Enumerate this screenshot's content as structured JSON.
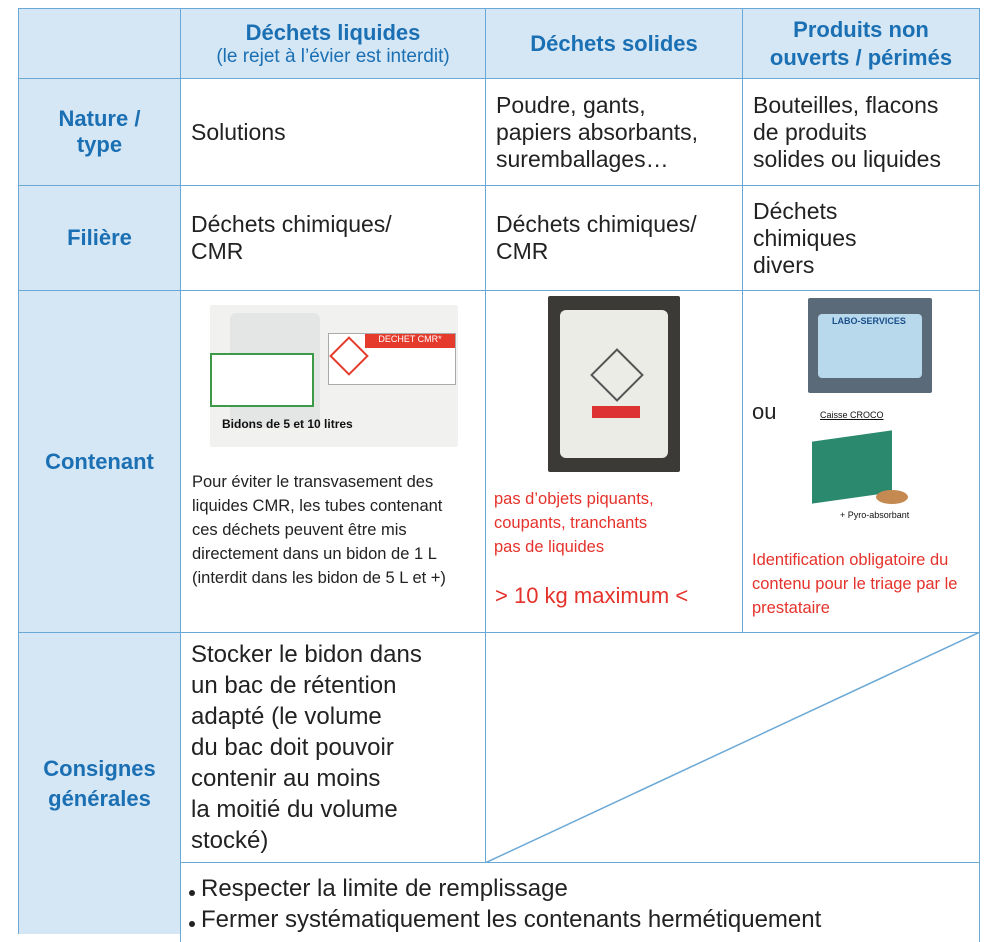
{
  "table": {
    "columns": [
      {
        "title": [
          "Déchets liquides"
        ],
        "subtitle": "(le rejet à l’évier est interdit)"
      },
      {
        "title": [
          "Déchets solides"
        ]
      },
      {
        "title": [
          "Produits non",
          "ouverts / périmés"
        ]
      }
    ],
    "rows": [
      {
        "label": [
          "Nature /",
          "type"
        ],
        "cells": [
          [
            "Solutions"
          ],
          [
            "Poudre, gants,",
            "papiers absorbants,",
            "suremballages…"
          ],
          [
            "Bouteilles, flacons",
            "de produits",
            "solides ou liquides"
          ]
        ]
      },
      {
        "label": [
          "Filière"
        ],
        "cells": [
          [
            "Déchets chimiques/",
            "CMR"
          ],
          [
            "Déchets chimiques/",
            "CMR"
          ],
          [
            "Déchets",
            "chimiques",
            "divers"
          ]
        ]
      }
    ],
    "contenant": {
      "label": [
        "Contenant"
      ],
      "liquides": {
        "label_text": "DECHET CMR*",
        "image_caption": "Bidons de 5 et 10 litres",
        "note": [
          "Pour éviter le transvasement des",
          "liquides CMR, les tubes contenant",
          "ces déchets peuvent être mis",
          "directement dans un bidon de 1 L",
          "(interdit dans les bidon de 5 L et +)"
        ]
      },
      "solides": {
        "warning": [
          "pas d’objets piquants,",
          "coupants, tranchants",
          "pas de liquides"
        ],
        "limit": "> 10 kg maximum <"
      },
      "produits": {
        "image_text": "LABO-SERVICES",
        "or": "ou",
        "box_caption": "Caisse CROCO",
        "box_note": "+ Pyro-absorbant",
        "note": [
          "Identification obligatoire du",
          "contenu pour le triage par le",
          "prestataire"
        ]
      }
    },
    "consignes": {
      "label": [
        "Consignes",
        "générales"
      ],
      "text": [
        "Stocker le bidon dans",
        "un bac de rétention",
        "adapté (le volume",
        "du bac doit pouvoir",
        "contenir au moins",
        "la moitié du volume",
        "stocké)"
      ],
      "bullets": [
        "Respecter la limite de remplissage",
        "Fermer systématiquement les contenants hermétiquement"
      ]
    }
  }
}
